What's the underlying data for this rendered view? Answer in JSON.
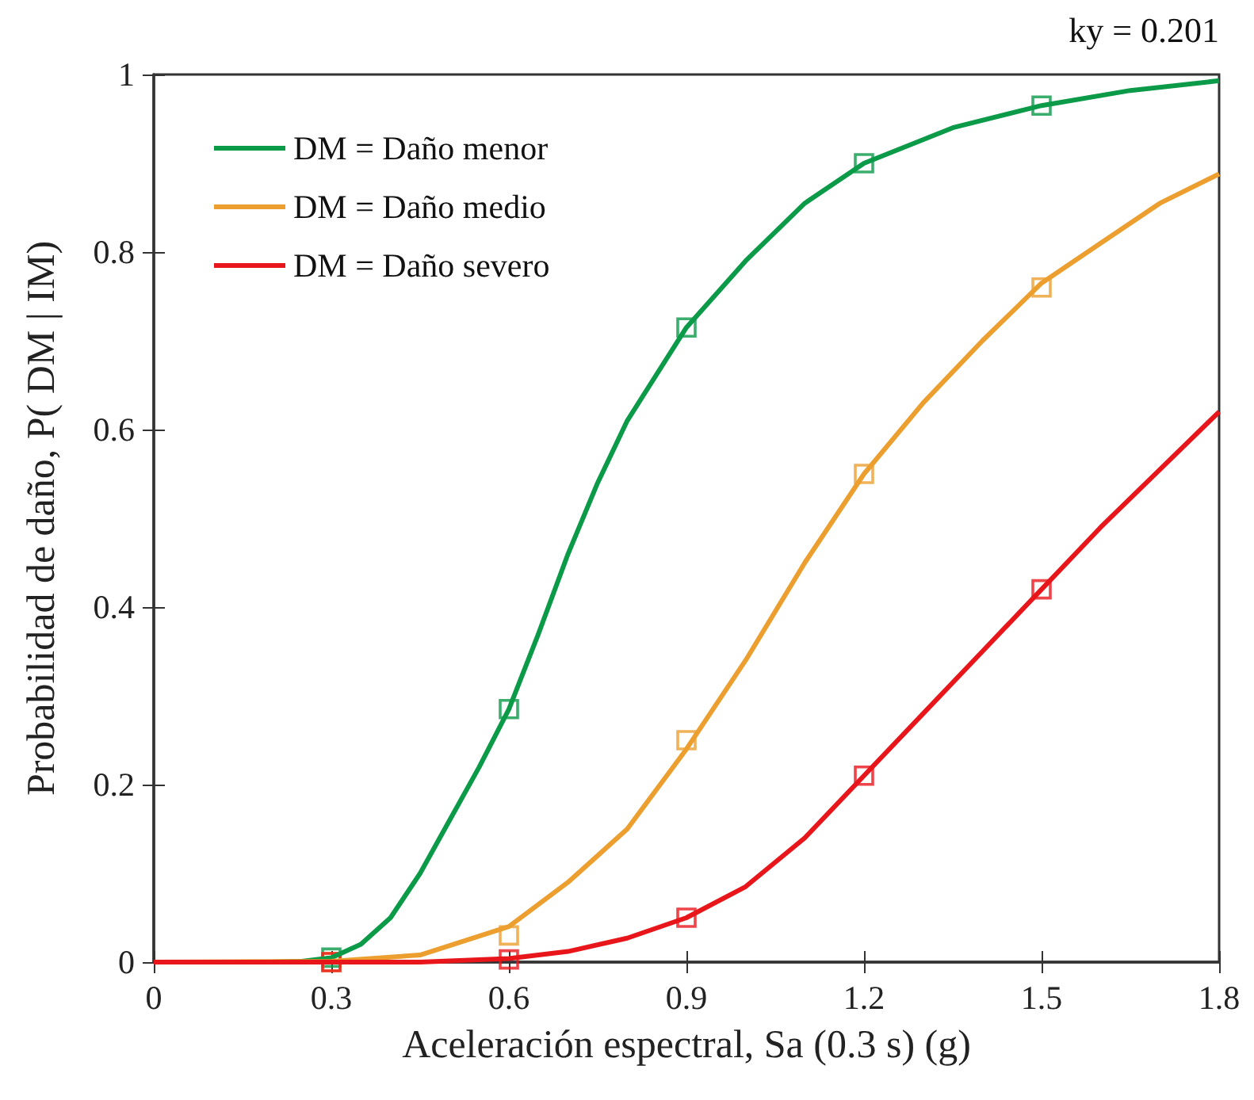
{
  "chart_data": {
    "type": "line",
    "xlabel": "Aceleración espectral, Sa (0.3 s) (g)",
    "ylabel": "Probabilidad de daño, P( DM | IM)",
    "annotations": [
      "ky = 0.201"
    ],
    "xlim": [
      0,
      1.8
    ],
    "xticks": [
      0,
      0.3,
      0.6,
      0.9,
      1.2,
      1.5,
      1.8
    ],
    "ylim": [
      0,
      1
    ],
    "yticks": [
      0,
      0.2,
      0.4,
      0.6,
      0.8,
      1
    ],
    "legend": "top left",
    "series": [
      {
        "type": "line",
        "name": "DM = Daño menor",
        "color": "#0a9a48",
        "marker": "none",
        "x": [
          0,
          0.2,
          0.25,
          0.3,
          0.35,
          0.4,
          0.45,
          0.5,
          0.55,
          0.6,
          0.65,
          0.7,
          0.75,
          0.8,
          0.9,
          1.0,
          1.1,
          1.2,
          1.35,
          1.5,
          1.65,
          1.8
        ],
        "values": [
          0,
          0,
          0.001,
          0.005,
          0.02,
          0.05,
          0.1,
          0.16,
          0.22,
          0.285,
          0.37,
          0.46,
          0.54,
          0.61,
          0.715,
          0.79,
          0.855,
          0.9,
          0.94,
          0.965,
          0.982,
          0.993
        ]
      },
      {
        "type": "line",
        "name": "DM = Daño medio",
        "color": "#ec9f2e",
        "marker": "none",
        "x": [
          0,
          0.3,
          0.45,
          0.6,
          0.7,
          0.8,
          0.9,
          1.0,
          1.1,
          1.2,
          1.3,
          1.4,
          1.5,
          1.6,
          1.7,
          1.8
        ],
        "values": [
          0,
          0.001,
          0.008,
          0.04,
          0.09,
          0.15,
          0.24,
          0.34,
          0.45,
          0.55,
          0.63,
          0.7,
          0.765,
          0.81,
          0.855,
          0.888
        ]
      },
      {
        "type": "line",
        "name": "DM = Daño severo",
        "color": "#e8161b",
        "marker": "none",
        "x": [
          0,
          0.45,
          0.6,
          0.7,
          0.8,
          0.9,
          1.0,
          1.1,
          1.2,
          1.3,
          1.4,
          1.5,
          1.6,
          1.7,
          1.8
        ],
        "values": [
          0,
          0,
          0.004,
          0.012,
          0.027,
          0.05,
          0.085,
          0.14,
          0.21,
          0.28,
          0.35,
          0.42,
          0.49,
          0.555,
          0.62
        ]
      },
      {
        "type": "scatter",
        "color": "#0a9a48",
        "marker": "square",
        "x": [
          0.3,
          0.6,
          0.9,
          1.2,
          1.5
        ],
        "values": [
          0.005,
          0.285,
          0.715,
          0.9,
          0.965
        ]
      },
      {
        "type": "scatter",
        "color": "#ec9f2e",
        "marker": "square",
        "x": [
          0.3,
          0.6,
          0.9,
          1.2,
          1.5
        ],
        "values": [
          0,
          0.03,
          0.25,
          0.55,
          0.76
        ]
      },
      {
        "type": "scatter",
        "color": "#e8161b",
        "marker": "square",
        "x": [
          0.3,
          0.6,
          0.9,
          1.2,
          1.5
        ],
        "values": [
          0,
          0.003,
          0.05,
          0.21,
          0.42
        ]
      }
    ]
  }
}
